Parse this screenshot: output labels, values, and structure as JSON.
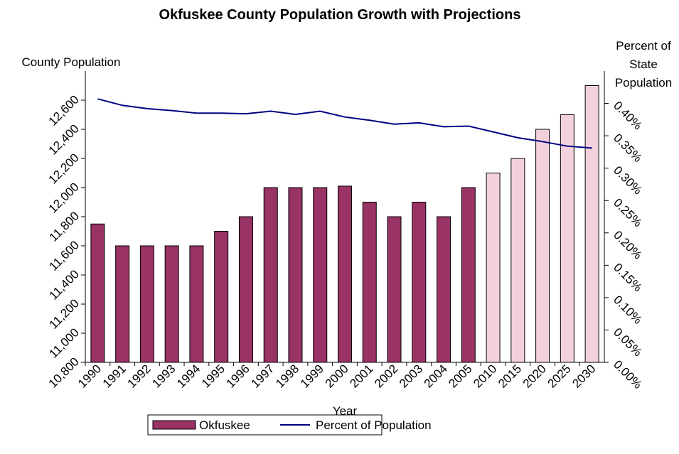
{
  "chart_data": {
    "type": "bar_line",
    "title": "Okfuskee County Population Growth with Projections",
    "y_label": "County Population",
    "y2_label": "Percent of State Population",
    "x_label": "Year",
    "categories": [
      "1990",
      "1991",
      "1992",
      "1993",
      "1994",
      "1995",
      "1996",
      "1997",
      "1998",
      "1999",
      "2000",
      "2001",
      "2002",
      "2003",
      "2004",
      "2005",
      "2010",
      "2015",
      "2020",
      "2025",
      "2030"
    ],
    "series": [
      {
        "name": "Okfuskee",
        "type": "bar",
        "color": "#993366",
        "colors": [
          "#993366",
          "#993366",
          "#993366",
          "#993366",
          "#993366",
          "#993366",
          "#993366",
          "#993366",
          "#993366",
          "#993366",
          "#993366",
          "#993366",
          "#993366",
          "#993366",
          "#993366",
          "#993366",
          "#f2d0dc",
          "#f2d0dc",
          "#f2d0dc",
          "#f2d0dc",
          "#f2d0dc"
        ],
        "values": [
          11750,
          11600,
          11600,
          11600,
          11600,
          11700,
          11800,
          12000,
          12000,
          12000,
          12010,
          11900,
          11800,
          11900,
          11800,
          12000,
          12100,
          12200,
          12400,
          12500,
          12700
        ]
      },
      {
        "name": "Percent of Population",
        "type": "line",
        "axis": "y2",
        "color": "#000080",
        "values": [
          0.407,
          0.397,
          0.392,
          0.389,
          0.385,
          0.385,
          0.384,
          0.388,
          0.383,
          0.388,
          0.379,
          0.374,
          0.368,
          0.37,
          0.364,
          0.365,
          0.356,
          0.347,
          0.341,
          0.334,
          0.331
        ]
      }
    ],
    "ylim": [
      10800,
      12800
    ],
    "yticks": [
      {
        "value": 10800,
        "label": "10,800"
      },
      {
        "value": 11000,
        "label": "11,000"
      },
      {
        "value": 11200,
        "label": "11,200"
      },
      {
        "value": 11400,
        "label": "11,400"
      },
      {
        "value": 11600,
        "label": "11,600"
      },
      {
        "value": 11800,
        "label": "11,800"
      },
      {
        "value": 12000,
        "label": "12,000"
      },
      {
        "value": 12200,
        "label": "12,200"
      },
      {
        "value": 12400,
        "label": "12,400"
      },
      {
        "value": 12600,
        "label": "12,600"
      }
    ],
    "y2lim": [
      0,
      0.45
    ],
    "y2ticks": [
      {
        "value": 0,
        "label": "0.00%"
      },
      {
        "value": 0.05,
        "label": "0.05%"
      },
      {
        "value": 0.1,
        "label": "0.10%"
      },
      {
        "value": 0.15,
        "label": "0.15%"
      },
      {
        "value": 0.2,
        "label": "0.20%"
      },
      {
        "value": 0.25,
        "label": "0.25%"
      },
      {
        "value": 0.3,
        "label": "0.30%"
      },
      {
        "value": 0.35,
        "label": "0.35%"
      },
      {
        "value": 0.4,
        "label": "0.40%"
      }
    ],
    "grid": false,
    "legend": "bottom"
  }
}
